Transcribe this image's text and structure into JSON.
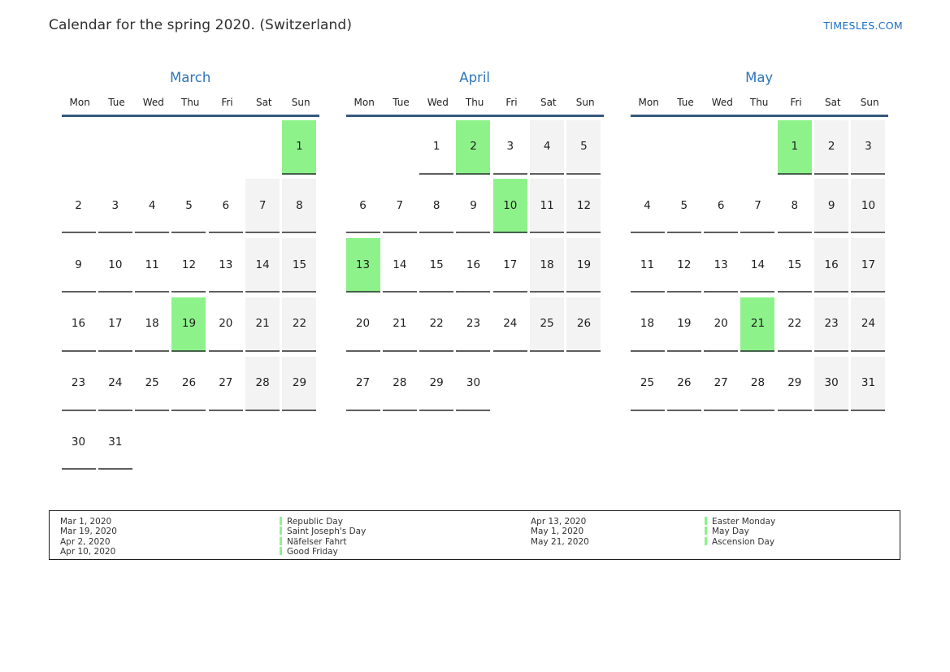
{
  "page": {
    "title": "Calendar for the spring 2020. (Switzerland)",
    "site_link": "TIMESLES.COM"
  },
  "colors": {
    "accent_blue": "#2d76bb",
    "link_blue": "#1b6fc5",
    "holiday_green": "#8ef28b",
    "weekend_bg": "#f3f3f3",
    "header_line": "#35587d"
  },
  "calendar": {
    "weekdays": [
      "Mon",
      "Tue",
      "Wed",
      "Thu",
      "Fri",
      "Sat",
      "Sun"
    ],
    "months": [
      {
        "name": "March",
        "holidays": [
          1,
          19
        ],
        "weeks": [
          [
            null,
            null,
            null,
            null,
            null,
            null,
            1
          ],
          [
            2,
            3,
            4,
            5,
            6,
            7,
            8
          ],
          [
            9,
            10,
            11,
            12,
            13,
            14,
            15
          ],
          [
            16,
            17,
            18,
            19,
            20,
            21,
            22
          ],
          [
            23,
            24,
            25,
            26,
            27,
            28,
            29
          ],
          [
            30,
            31,
            null,
            null,
            null,
            null,
            null
          ]
        ]
      },
      {
        "name": "April",
        "holidays": [
          2,
          10,
          13
        ],
        "weeks": [
          [
            null,
            null,
            1,
            2,
            3,
            4,
            5
          ],
          [
            6,
            7,
            8,
            9,
            10,
            11,
            12
          ],
          [
            13,
            14,
            15,
            16,
            17,
            18,
            19
          ],
          [
            20,
            21,
            22,
            23,
            24,
            25,
            26
          ],
          [
            27,
            28,
            29,
            30,
            null,
            null,
            null
          ]
        ]
      },
      {
        "name": "May",
        "holidays": [
          1,
          21
        ],
        "weeks": [
          [
            null,
            null,
            null,
            null,
            1,
            2,
            3
          ],
          [
            4,
            5,
            6,
            7,
            8,
            9,
            10
          ],
          [
            11,
            12,
            13,
            14,
            15,
            16,
            17
          ],
          [
            18,
            19,
            20,
            21,
            22,
            23,
            24
          ],
          [
            25,
            26,
            27,
            28,
            29,
            30,
            31
          ]
        ]
      }
    ]
  },
  "legend": {
    "groups": [
      {
        "dates": [
          "Mar 1, 2020",
          "Mar 19, 2020",
          "Apr 2, 2020",
          "Apr 10, 2020"
        ],
        "names": [
          "Republic Day",
          "Saint Joseph's Day",
          "Näfelser Fahrt",
          "Good Friday"
        ]
      },
      {
        "dates": [
          "Apr 13, 2020",
          "May 1, 2020",
          "May 21, 2020"
        ],
        "names": [
          "Easter Monday",
          "May Day",
          "Ascension Day"
        ]
      }
    ]
  }
}
